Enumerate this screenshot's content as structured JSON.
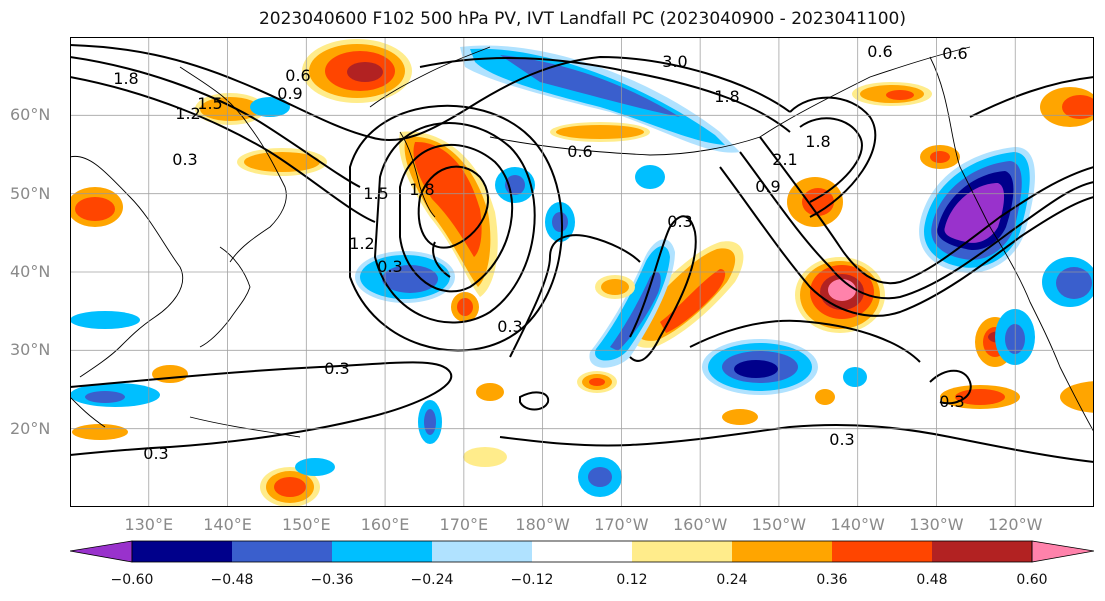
{
  "title": "2023040600 F102 500 hPa PV, IVT Landfall PC (2023040900 - 2023041100)",
  "map": {
    "lat_labels": [
      "60°N",
      "50°N",
      "40°N",
      "30°N",
      "20°N"
    ],
    "lon_labels": [
      "130°E",
      "140°E",
      "150°E",
      "160°E",
      "170°E",
      "180°W",
      "170°W",
      "160°W",
      "150°W",
      "140°W",
      "130°W",
      "120°W"
    ],
    "lat_range": [
      10,
      70
    ],
    "lon_range": [
      120,
      250
    ],
    "grid": true,
    "contour_labels": [
      "1.8",
      "0.6",
      "1.5",
      "0.9",
      "1.2",
      "0.3",
      "3.0",
      "1.8",
      "0.6",
      "2.1",
      "1.8",
      "0.9",
      "0.6",
      "1.8",
      "0.6",
      "0.3",
      "1.5",
      "1.2",
      "0.3",
      "0.3",
      "0.3",
      "0.3",
      "0.3",
      "0.3"
    ]
  },
  "colorbar": {
    "tick_labels": [
      "−0.60",
      "−0.48",
      "−0.36",
      "−0.24",
      "−0.12",
      "0.12",
      "0.24",
      "0.36",
      "0.48",
      "0.60"
    ],
    "colors": [
      "#9932cc",
      "#00008b",
      "#3a5fcd",
      "#00bfff",
      "#b0e2ff",
      "#ffffff",
      "#ffec8b",
      "#ffa500",
      "#ff4500",
      "#b22222",
      "#ff82ab"
    ]
  }
}
